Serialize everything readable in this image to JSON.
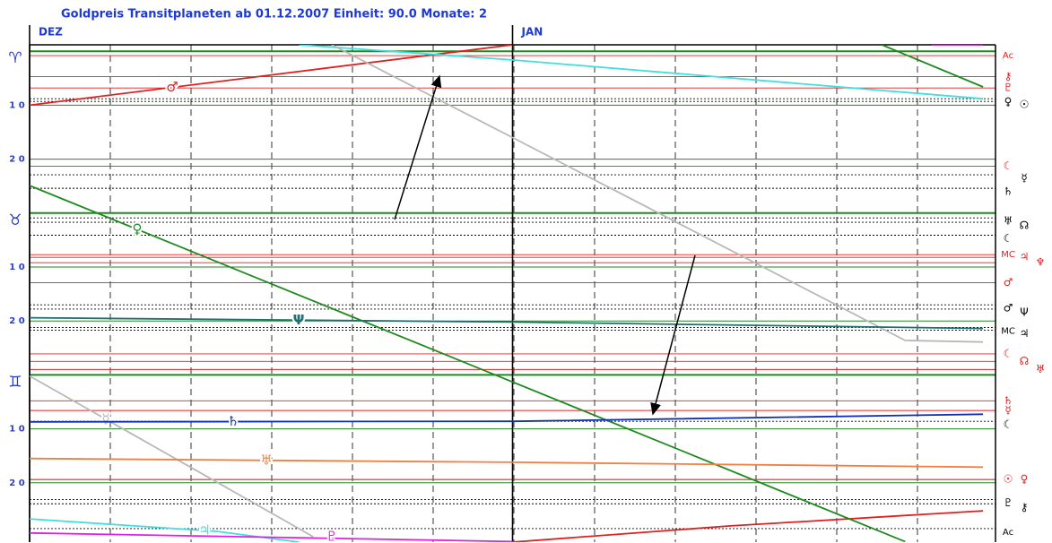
{
  "chart_data": {
    "type": "line",
    "title": "Goldpreis  Transitplaneten ab 01.12.2007  Einheit: 90.0  Monate:  2",
    "months": [
      "DEZ",
      "JAN"
    ],
    "month_starts": [
      0,
      31
    ],
    "xlim": [
      0,
      62
    ],
    "ylim": [
      -1.2,
      91
    ],
    "y_inverted": true,
    "yticks": [
      {
        "value": 0,
        "label": "♈"
      },
      {
        "value": 10,
        "label": "1 0"
      },
      {
        "value": 20,
        "label": "2 0"
      },
      {
        "value": 30,
        "label": "♉"
      },
      {
        "value": 40,
        "label": "1 0"
      },
      {
        "value": 50,
        "label": "2 0"
      },
      {
        "value": 60,
        "label": "♊"
      },
      {
        "value": 70,
        "label": "1 0"
      },
      {
        "value": 80,
        "label": "2 0"
      }
    ],
    "grid": true,
    "series": [
      {
        "name": "♂",
        "color": "#e02020",
        "x": [
          0,
          31,
          null,
          31,
          45,
          61.2
        ],
        "values": [
          10,
          -1.2,
          null,
          91,
          88,
          85.2
        ]
      },
      {
        "name": "♃",
        "color": "#40dede",
        "x": [
          0,
          12,
          17.3,
          null,
          17.3,
          31,
          61.2
        ],
        "values": [
          86.7,
          89,
          91,
          null,
          -1.2,
          1.6,
          8.8
        ]
      },
      {
        "name": "☿",
        "color": "#b8b8b8",
        "x": [
          0,
          18.2,
          null,
          19.4,
          31,
          56.2,
          61.2
        ],
        "values": [
          60.2,
          90,
          null,
          -1.2,
          16,
          53.6,
          53.9
        ]
      },
      {
        "name": "♀",
        "color": "#1f8a1f",
        "x": [
          0,
          56.2,
          null,
          54.7,
          61.2
        ],
        "values": [
          24.9,
          90.9,
          null,
          -1.2,
          6.6
        ]
      },
      {
        "name": "Ψ",
        "color": "#1f7070",
        "x": [
          0,
          31,
          61.2
        ],
        "values": [
          49.4,
          50.2,
          51.4
        ]
      },
      {
        "name": "♄",
        "color": "#1030b0",
        "x": [
          0,
          31,
          61.2
        ],
        "values": [
          68.7,
          68.6,
          67.3
        ]
      },
      {
        "name": "♅",
        "color": "#f08040",
        "x": [
          0,
          31,
          61.2
        ],
        "values": [
          75.5,
          76.2,
          77.1
        ]
      },
      {
        "name": "♇",
        "color": "#e020e0",
        "x": [
          0,
          31,
          null,
          57.9,
          61.2
        ],
        "values": [
          89.3,
          90.9,
          null,
          -1.2,
          -1.2
        ]
      }
    ],
    "natal": [
      {
        "label": "Ac",
        "color": "#e02020",
        "value": 0.8
      },
      {
        "label": "⚷",
        "color": "#e02020",
        "value": 4.7
      },
      {
        "label": "♇",
        "color": "#e02020",
        "value": 6.8
      },
      {
        "label": "♀",
        "color": "#000000",
        "value": 8.8
      },
      {
        "label": "☉",
        "color": "#000000",
        "value": 9.3
      },
      {
        "label": "☾",
        "color": "#e02020",
        "value": 21.3
      },
      {
        "label": "☿",
        "color": "#000000",
        "value": 22.9
      },
      {
        "label": "♄",
        "color": "#000000",
        "value": 25.4
      },
      {
        "label": "♅",
        "color": "#000000",
        "value": 30.9
      },
      {
        "label": "☊",
        "color": "#000000",
        "value": 31.7
      },
      {
        "label": "☾",
        "color": "#000000",
        "value": 34.1
      },
      {
        "label": "MC",
        "color": "#e02020",
        "value": 37.7
      },
      {
        "label": "♃",
        "color": "#e02020",
        "value": 38.2
      },
      {
        "label": "♆",
        "color": "#e02020",
        "value": 39.2
      },
      {
        "label": "♂",
        "color": "#e02020",
        "value": 42.9
      },
      {
        "label": "♂",
        "color": "#000000",
        "value": 47
      },
      {
        "label": "Ψ",
        "color": "#000000",
        "value": 47.8
      },
      {
        "label": "MC",
        "color": "#000000",
        "value": 51.2
      },
      {
        "label": "♃",
        "color": "#000000",
        "value": 51.7
      },
      {
        "label": "☾",
        "color": "#e02020",
        "value": 56.1
      },
      {
        "label": "☊",
        "color": "#e02020",
        "value": 57.5
      },
      {
        "label": "♅",
        "color": "#e02020",
        "value": 59
      },
      {
        "label": "♄",
        "color": "#e02020",
        "value": 64.8
      },
      {
        "label": "☿",
        "color": "#e02020",
        "value": 66.6
      },
      {
        "label": "☾",
        "color": "#000000",
        "value": 68.6
      },
      {
        "label": "☉",
        "color": "#e02020",
        "value": 79.4
      },
      {
        "label": "♀",
        "color": "#e02020",
        "value": 79.4
      },
      {
        "label": "♇",
        "color": "#000000",
        "value": 83.1
      },
      {
        "label": "⚷",
        "color": "#000000",
        "value": 83.9
      },
      {
        "label": "Ac",
        "color": "#000000",
        "value": 88.5
      }
    ]
  }
}
